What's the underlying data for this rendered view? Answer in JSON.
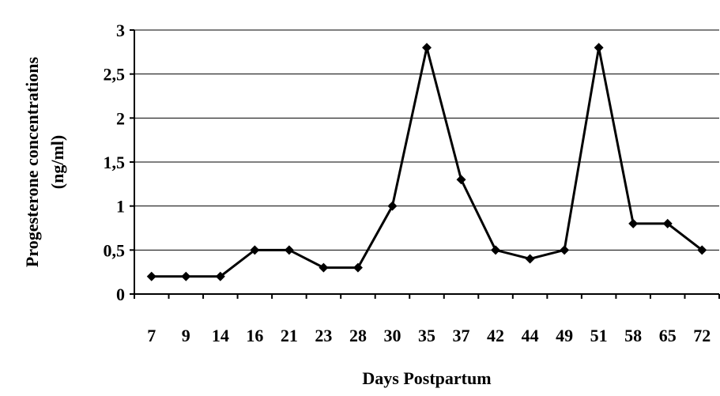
{
  "chart_data": {
    "type": "line",
    "xlabel": "Days Postpartum",
    "ylabel_lines": [
      "Progesterone concentrations",
      "(ng/ml)"
    ],
    "categories": [
      "7",
      "9",
      "14",
      "16",
      "21",
      "23",
      "28",
      "30",
      "35",
      "37",
      "42",
      "44",
      "49",
      "51",
      "58",
      "65",
      "72"
    ],
    "series": [
      {
        "values": [
          0.2,
          0.2,
          0.2,
          0.5,
          0.5,
          0.3,
          0.3,
          1.0,
          2.8,
          1.3,
          0.5,
          0.4,
          0.5,
          2.8,
          0.8,
          0.8,
          0.5
        ]
      }
    ],
    "ylim": [
      0,
      3
    ],
    "yticks": [
      0,
      0.5,
      1,
      1.5,
      2,
      2.5,
      3
    ],
    "ytick_labels": [
      "0",
      "0,5",
      "1",
      "1,5",
      "2",
      "2,5",
      "3"
    ],
    "grid": true,
    "legend": false,
    "marker": "diamond",
    "line_color": "#000000"
  }
}
